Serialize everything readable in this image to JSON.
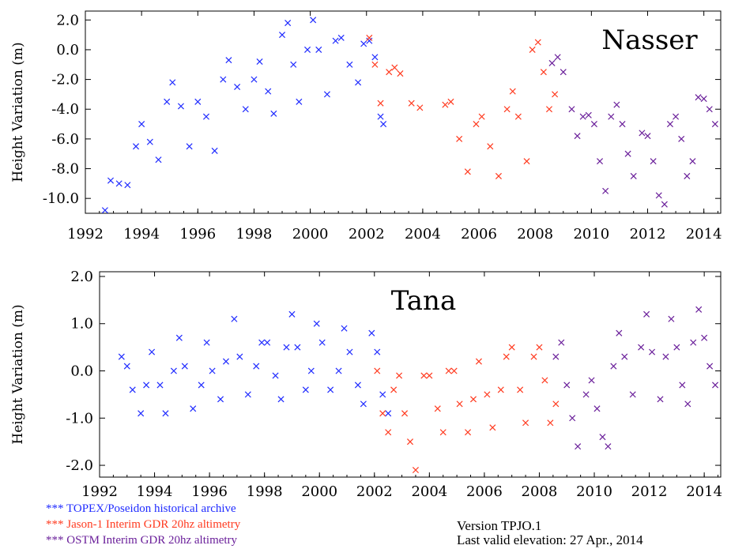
{
  "colors": {
    "topex": "#1f2bff",
    "jason": "#ff3a1f",
    "ostm": "#6a1f9a",
    "axis": "#000000"
  },
  "legend": [
    {
      "key": "topex",
      "marker": "***",
      "label": "TOPEX/Poseidon historical archive"
    },
    {
      "key": "jason",
      "marker": "***",
      "label": "Jason-1 Interim GDR 20hz altimetry"
    },
    {
      "key": "ostm",
      "marker": "***",
      "label": "OSTM  Interim GDR 20hz altimetry"
    }
  ],
  "version": {
    "line1": "Version TPJO.1",
    "line2": "Last valid elevation: 27 Apr., 2014"
  },
  "chart_data": [
    {
      "type": "scatter",
      "title": "Nasser",
      "ylabel": "Height Variation (m)",
      "xlim": [
        1992,
        2014.6
      ],
      "ylim": [
        -11,
        2.6
      ],
      "xticks": [
        1992,
        1994,
        1996,
        1998,
        2000,
        2002,
        2004,
        2006,
        2008,
        2010,
        2012,
        2014
      ],
      "yticks": [
        2,
        0,
        -2,
        -4,
        -6,
        -8,
        -10
      ],
      "ytick_labels": [
        "2.0",
        "0.0",
        "-2.0",
        "-4.0",
        "-6.0",
        "-8.0",
        "-10.0"
      ],
      "series": [
        {
          "key": "topex",
          "points": [
            [
              1992.7,
              -10.8
            ],
            [
              1992.9,
              -8.8
            ],
            [
              1993.2,
              -9.0
            ],
            [
              1993.5,
              -9.1
            ],
            [
              1993.8,
              -6.5
            ],
            [
              1994.0,
              -5.0
            ],
            [
              1994.3,
              -6.2
            ],
            [
              1994.6,
              -7.4
            ],
            [
              1994.9,
              -3.5
            ],
            [
              1995.1,
              -2.2
            ],
            [
              1995.4,
              -3.8
            ],
            [
              1995.7,
              -6.5
            ],
            [
              1996.0,
              -3.5
            ],
            [
              1996.3,
              -4.5
            ],
            [
              1996.6,
              -6.8
            ],
            [
              1996.9,
              -2.0
            ],
            [
              1997.1,
              -0.7
            ],
            [
              1997.4,
              -2.5
            ],
            [
              1997.7,
              -4.0
            ],
            [
              1998.0,
              -2.0
            ],
            [
              1998.2,
              -0.8
            ],
            [
              1998.5,
              -2.8
            ],
            [
              1998.7,
              -4.3
            ],
            [
              1999.0,
              1.0
            ],
            [
              1999.2,
              1.8
            ],
            [
              1999.4,
              -1.0
            ],
            [
              1999.6,
              -3.5
            ],
            [
              1999.9,
              0.0
            ],
            [
              2000.1,
              2.0
            ],
            [
              2000.3,
              0.0
            ],
            [
              2000.6,
              -3.0
            ],
            [
              2000.9,
              0.6
            ],
            [
              2001.1,
              0.8
            ],
            [
              2001.4,
              -1.0
            ],
            [
              2001.7,
              -2.2
            ],
            [
              2001.9,
              0.4
            ],
            [
              2002.1,
              0.6
            ],
            [
              2002.3,
              -0.5
            ],
            [
              2002.5,
              -4.5
            ],
            [
              2002.6,
              -5.0
            ]
          ]
        },
        {
          "key": "jason",
          "points": [
            [
              2002.1,
              0.8
            ],
            [
              2002.3,
              -1.0
            ],
            [
              2002.5,
              -3.6
            ],
            [
              2002.8,
              -1.5
            ],
            [
              2003.0,
              -1.2
            ],
            [
              2003.2,
              -1.6
            ],
            [
              2003.6,
              -3.6
            ],
            [
              2003.9,
              -3.9
            ],
            [
              2004.8,
              -3.7
            ],
            [
              2005.0,
              -3.5
            ],
            [
              2005.3,
              -6.0
            ],
            [
              2005.6,
              -8.2
            ],
            [
              2005.9,
              -5.0
            ],
            [
              2006.1,
              -4.5
            ],
            [
              2006.4,
              -6.5
            ],
            [
              2006.7,
              -8.5
            ],
            [
              2007.0,
              -4.0
            ],
            [
              2007.2,
              -2.8
            ],
            [
              2007.4,
              -4.5
            ],
            [
              2007.7,
              -7.5
            ],
            [
              2007.9,
              0.0
            ],
            [
              2008.1,
              0.5
            ],
            [
              2008.3,
              -1.5
            ],
            [
              2008.5,
              -4.0
            ],
            [
              2008.7,
              -3.0
            ]
          ]
        },
        {
          "key": "ostm",
          "points": [
            [
              2008.6,
              -0.9
            ],
            [
              2008.8,
              -0.5
            ],
            [
              2009.0,
              -1.5
            ],
            [
              2009.3,
              -4.0
            ],
            [
              2009.5,
              -5.8
            ],
            [
              2009.7,
              -4.5
            ],
            [
              2009.9,
              -4.4
            ],
            [
              2010.1,
              -5.0
            ],
            [
              2010.3,
              -7.5
            ],
            [
              2010.5,
              -9.5
            ],
            [
              2010.7,
              -4.5
            ],
            [
              2010.9,
              -3.7
            ],
            [
              2011.1,
              -5.0
            ],
            [
              2011.3,
              -7.0
            ],
            [
              2011.5,
              -8.5
            ],
            [
              2011.8,
              -5.6
            ],
            [
              2012.0,
              -5.8
            ],
            [
              2012.2,
              -7.5
            ],
            [
              2012.4,
              -9.8
            ],
            [
              2012.6,
              -10.4
            ],
            [
              2012.8,
              -5.0
            ],
            [
              2013.0,
              -4.5
            ],
            [
              2013.2,
              -6.0
            ],
            [
              2013.4,
              -8.5
            ],
            [
              2013.6,
              -7.5
            ],
            [
              2013.8,
              -3.2
            ],
            [
              2014.0,
              -3.3
            ],
            [
              2014.2,
              -4.0
            ],
            [
              2014.4,
              -5.0
            ]
          ]
        }
      ]
    },
    {
      "type": "scatter",
      "title": "Tana",
      "ylabel": "Height Variation (m)",
      "xlim": [
        1992,
        2014.6
      ],
      "ylim": [
        -2.25,
        2.1
      ],
      "xticks": [
        1992,
        1994,
        1996,
        1998,
        2000,
        2002,
        2004,
        2006,
        2008,
        2010,
        2012,
        2014
      ],
      "yticks": [
        2,
        1,
        0,
        -1,
        -2
      ],
      "ytick_labels": [
        "2.0",
        "1.0",
        "0.0",
        "-1.0",
        "-2.0"
      ],
      "series": [
        {
          "key": "topex",
          "points": [
            [
              1992.8,
              0.3
            ],
            [
              1993.0,
              0.1
            ],
            [
              1993.2,
              -0.4
            ],
            [
              1993.5,
              -0.9
            ],
            [
              1993.7,
              -0.3
            ],
            [
              1993.9,
              0.4
            ],
            [
              1994.2,
              -0.3
            ],
            [
              1994.4,
              -0.9
            ],
            [
              1994.7,
              0.0
            ],
            [
              1994.9,
              0.7
            ],
            [
              1995.1,
              0.1
            ],
            [
              1995.4,
              -0.8
            ],
            [
              1995.7,
              -0.3
            ],
            [
              1995.9,
              0.6
            ],
            [
              1996.1,
              0.0
            ],
            [
              1996.4,
              -0.6
            ],
            [
              1996.6,
              0.2
            ],
            [
              1996.9,
              1.1
            ],
            [
              1997.1,
              0.3
            ],
            [
              1997.4,
              -0.5
            ],
            [
              1997.7,
              0.1
            ],
            [
              1997.9,
              0.6
            ],
            [
              1998.1,
              0.6
            ],
            [
              1998.4,
              -0.1
            ],
            [
              1998.6,
              -0.6
            ],
            [
              1998.8,
              0.5
            ],
            [
              1999.0,
              1.2
            ],
            [
              1999.2,
              0.5
            ],
            [
              1999.5,
              -0.4
            ],
            [
              1999.7,
              0.0
            ],
            [
              1999.9,
              1.0
            ],
            [
              2000.1,
              0.6
            ],
            [
              2000.4,
              -0.4
            ],
            [
              2000.7,
              0.0
            ],
            [
              2000.9,
              0.9
            ],
            [
              2001.1,
              0.4
            ],
            [
              2001.4,
              -0.3
            ],
            [
              2001.6,
              -0.7
            ],
            [
              2001.9,
              0.8
            ],
            [
              2002.1,
              0.4
            ],
            [
              2002.3,
              -0.5
            ],
            [
              2002.5,
              -0.9
            ]
          ]
        },
        {
          "key": "jason",
          "points": [
            [
              2002.1,
              0.0
            ],
            [
              2002.3,
              -0.9
            ],
            [
              2002.5,
              -1.3
            ],
            [
              2002.7,
              -0.4
            ],
            [
              2002.9,
              -0.1
            ],
            [
              2003.1,
              -0.9
            ],
            [
              2003.3,
              -1.5
            ],
            [
              2003.5,
              -2.1
            ],
            [
              2003.8,
              -0.1
            ],
            [
              2004.0,
              -0.1
            ],
            [
              2004.3,
              -0.8
            ],
            [
              2004.5,
              -1.3
            ],
            [
              2004.7,
              0.0
            ],
            [
              2004.9,
              0.0
            ],
            [
              2005.1,
              -0.7
            ],
            [
              2005.4,
              -1.3
            ],
            [
              2005.6,
              -0.6
            ],
            [
              2005.8,
              0.2
            ],
            [
              2006.1,
              -0.5
            ],
            [
              2006.3,
              -1.2
            ],
            [
              2006.6,
              -0.4
            ],
            [
              2006.8,
              0.3
            ],
            [
              2007.0,
              0.5
            ],
            [
              2007.3,
              -0.4
            ],
            [
              2007.5,
              -1.1
            ],
            [
              2007.8,
              0.3
            ],
            [
              2008.0,
              0.5
            ],
            [
              2008.2,
              -0.2
            ],
            [
              2008.4,
              -1.1
            ],
            [
              2008.6,
              -0.7
            ]
          ]
        },
        {
          "key": "ostm",
          "points": [
            [
              2008.6,
              0.3
            ],
            [
              2008.8,
              0.6
            ],
            [
              2009.0,
              -0.3
            ],
            [
              2009.2,
              -1.0
            ],
            [
              2009.4,
              -1.6
            ],
            [
              2009.7,
              -0.5
            ],
            [
              2009.9,
              -0.2
            ],
            [
              2010.1,
              -0.8
            ],
            [
              2010.3,
              -1.4
            ],
            [
              2010.5,
              -1.6
            ],
            [
              2010.7,
              0.1
            ],
            [
              2010.9,
              0.8
            ],
            [
              2011.1,
              0.3
            ],
            [
              2011.4,
              -0.5
            ],
            [
              2011.7,
              0.5
            ],
            [
              2011.9,
              1.2
            ],
            [
              2012.1,
              0.4
            ],
            [
              2012.4,
              -0.6
            ],
            [
              2012.6,
              0.3
            ],
            [
              2012.8,
              1.1
            ],
            [
              2013.0,
              0.5
            ],
            [
              2013.2,
              -0.3
            ],
            [
              2013.4,
              -0.7
            ],
            [
              2013.6,
              0.6
            ],
            [
              2013.8,
              1.3
            ],
            [
              2014.0,
              0.7
            ],
            [
              2014.2,
              0.1
            ],
            [
              2014.4,
              -0.3
            ]
          ]
        }
      ]
    }
  ]
}
